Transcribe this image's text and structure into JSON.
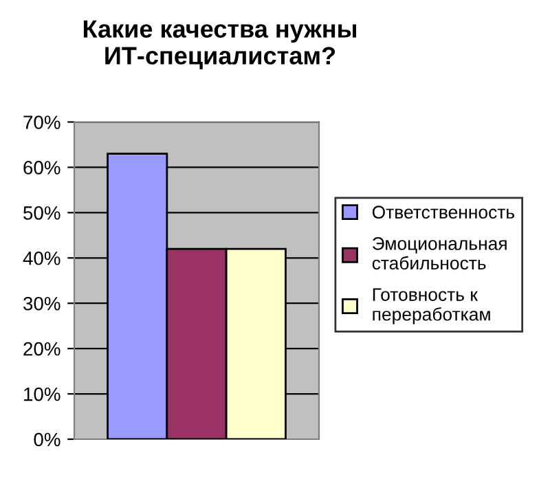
{
  "chart_data": {
    "type": "bar",
    "title": "Какие качества нужны\nИТ-специалистам?",
    "categories": [
      null
    ],
    "series": [
      {
        "name": "Ответственность",
        "color": "#9999ff",
        "values": [
          63
        ]
      },
      {
        "name": "Эмоциональная\nстабильность",
        "color": "#993366",
        "values": [
          42
        ]
      },
      {
        "name": "Готовность к\nпереработкам",
        "color": "#ffffcc",
        "values": [
          42
        ]
      }
    ],
    "ylim": [
      0,
      70
    ],
    "yticks": [
      {
        "value": 0,
        "label": "0%"
      },
      {
        "value": 10,
        "label": "10%"
      },
      {
        "value": 20,
        "label": "20%"
      },
      {
        "value": 30,
        "label": "30%"
      },
      {
        "value": 40,
        "label": "40%"
      },
      {
        "value": 50,
        "label": "50%"
      },
      {
        "value": 60,
        "label": "60%"
      },
      {
        "value": 70,
        "label": "70%"
      }
    ],
    "grid": "y",
    "legend": "right"
  }
}
